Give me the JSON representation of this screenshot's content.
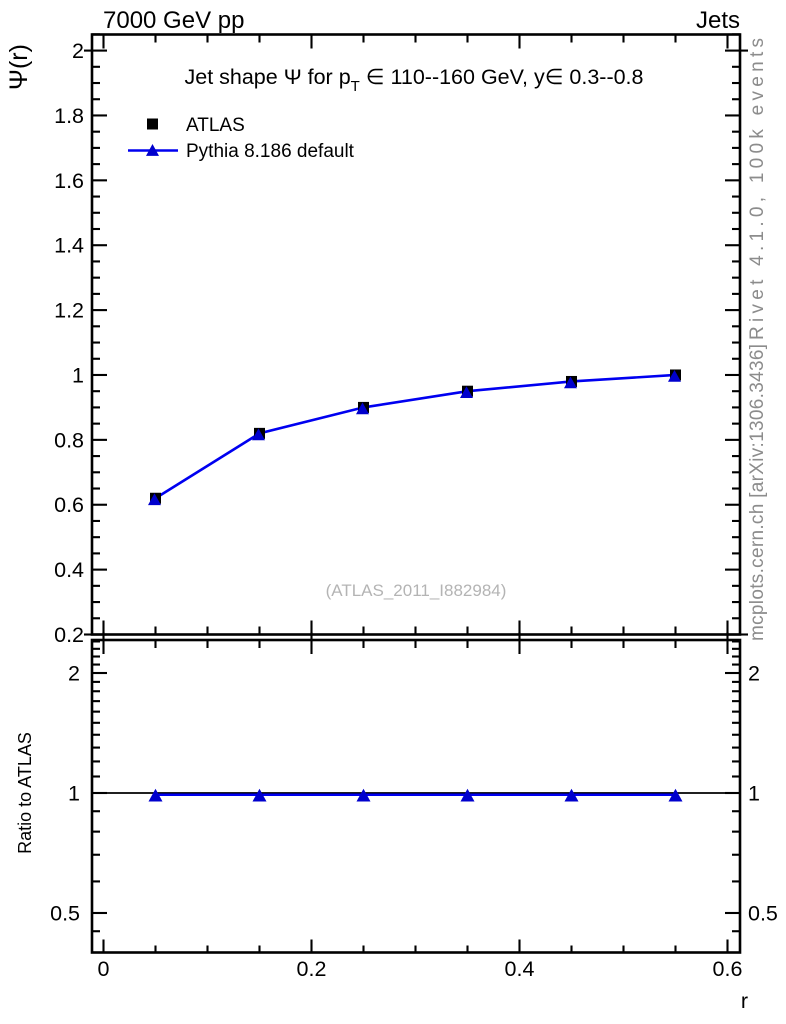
{
  "header": {
    "left": "7000 GeV pp",
    "right": "Jets"
  },
  "side_notes": {
    "top": "Rivet 4.1.0,  100k events",
    "bottom": "mcplots.cern.ch [arXiv:1306.3436]",
    "color": "#8c8c8c"
  },
  "watermark": {
    "text": "(ATLAS_2011_I882984)",
    "color": "#b4b4b4"
  },
  "legend": {
    "entries": [
      {
        "label": "ATLAS",
        "marker": "square",
        "color": "#000000"
      },
      {
        "label": "Pythia 8.186 default",
        "marker": "triangle",
        "color": "#0000cd",
        "line_color": "#0000f0"
      }
    ]
  },
  "chart_data": {
    "type": "line",
    "title_text": "Jet shape Ψ for pT ∈ 110--160 GeV, y∈ 0.3--0.8",
    "title_runs": [
      {
        "t": "Jet shape Ψ for p"
      },
      {
        "t": "T",
        "sub": true
      },
      {
        "t": " ∈ 110--160 GeV, y∈ 0.3--0.8"
      }
    ],
    "xlabel": "r",
    "ylabel_main": "Ψ(r)",
    "ylabel_ratio": "Ratio to ATLAS",
    "x_axis": {
      "range": [
        -0.0125,
        0.6125
      ],
      "major": [
        0,
        0.2,
        0.4,
        0.6
      ],
      "major_labels": [
        "0",
        "0.2",
        "0.4",
        "0.6"
      ],
      "minor_step": 0.05
    },
    "y_axis_main": {
      "range": [
        0.2,
        2.052
      ],
      "major": [
        0.2,
        0.4,
        0.6,
        0.8,
        1.0,
        1.2,
        1.4,
        1.6,
        1.8,
        2.0
      ],
      "major_labels": [
        "0.2",
        "0.4",
        "0.6",
        "0.8",
        "1",
        "1.2",
        "1.4",
        "1.6",
        "1.8",
        "2"
      ],
      "minor_step": 0.05,
      "grid": false
    },
    "y_axis_ratio": {
      "scale": "log",
      "range": [
        0.4,
        2.42
      ],
      "major": [
        0.5,
        1,
        2
      ],
      "major_labels": [
        "0.5",
        "1",
        "2"
      ],
      "minor": [
        0.45,
        0.6,
        0.7,
        0.8,
        0.9,
        1.1,
        1.2,
        1.3,
        1.4,
        1.5,
        1.6,
        1.7,
        1.8,
        1.9,
        2.1,
        2.2,
        2.3,
        2.4
      ]
    },
    "x_values": [
      0.05,
      0.15,
      0.25,
      0.35,
      0.45,
      0.55
    ],
    "series": [
      {
        "name": "ATLAS",
        "marker": "square",
        "color": "#000000",
        "values": [
          0.62,
          0.82,
          0.9,
          0.95,
          0.98,
          1.0
        ]
      },
      {
        "name": "Pythia 8.186 default",
        "marker": "triangle",
        "color": "#0000cd",
        "line_color": "#0000f0",
        "values": [
          0.62,
          0.82,
          0.9,
          0.95,
          0.98,
          1.0
        ]
      }
    ],
    "ratio": {
      "reference": "ATLAS",
      "reference_line": 1.0,
      "series": [
        {
          "name": "Pythia 8.186 default",
          "color": "#0000cd",
          "line_color": "#0000f0",
          "values": [
            0.99,
            0.99,
            0.99,
            0.99,
            0.99,
            0.99
          ]
        }
      ]
    },
    "legend_position": "top-left",
    "colors": {
      "mc_blue": "#0000f0",
      "data_black": "#000000"
    }
  }
}
